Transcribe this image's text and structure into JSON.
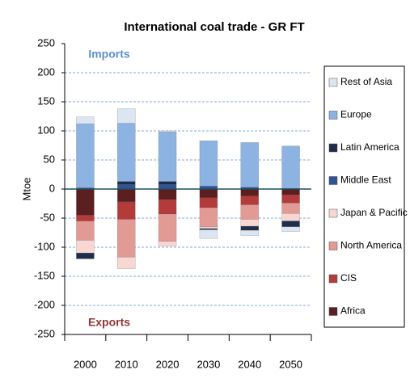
{
  "chart_data": {
    "type": "stacked-bar",
    "title": "International coal trade - GR FT",
    "y_label": "Mtoe",
    "annotations": [
      {
        "text": "Imports",
        "color": "#5b8fd0"
      },
      {
        "text": "Exports",
        "color": "#943634"
      }
    ],
    "categories": [
      "2000",
      "2010",
      "2020",
      "2030",
      "2040",
      "2050"
    ],
    "series": [
      {
        "name": "Africa",
        "color": "#5b1f1f",
        "values": [
          -45,
          -22,
          -18,
          -15,
          -12,
          -10
        ]
      },
      {
        "name": "CIS",
        "color": "#b33b3b",
        "values": [
          -10,
          -30,
          -25,
          -17,
          -15,
          -14
        ]
      },
      {
        "name": "North America",
        "color": "#e29a94",
        "values": [
          -33,
          -65,
          -47,
          -33,
          -25,
          -18
        ]
      },
      {
        "name": "Japan & Pacific",
        "color": "#f8d7d3",
        "values": [
          -22,
          -20,
          -8,
          -3,
          -12,
          -13
        ]
      },
      {
        "name": "Middle East",
        "color": "#2f5597",
        "values": [
          2,
          8,
          8,
          5,
          3,
          1
        ]
      },
      {
        "name": "Latin America",
        "color": "#1f2d4d",
        "values": [
          -10,
          5,
          5,
          -2,
          -7,
          -10
        ]
      },
      {
        "name": "Europe",
        "color": "#8db3e2",
        "values": [
          110,
          100,
          85,
          78,
          77,
          73
        ]
      },
      {
        "name": "Rest of Asia",
        "color": "#dce6f2",
        "values": [
          12,
          25,
          2,
          -15,
          -9,
          -8
        ]
      }
    ],
    "ylim": [
      -250,
      250
    ],
    "yticks": [
      250,
      200,
      150,
      100,
      50,
      0,
      -50,
      -100,
      -150,
      -200,
      -250
    ],
    "grid": true,
    "legend": "right"
  }
}
